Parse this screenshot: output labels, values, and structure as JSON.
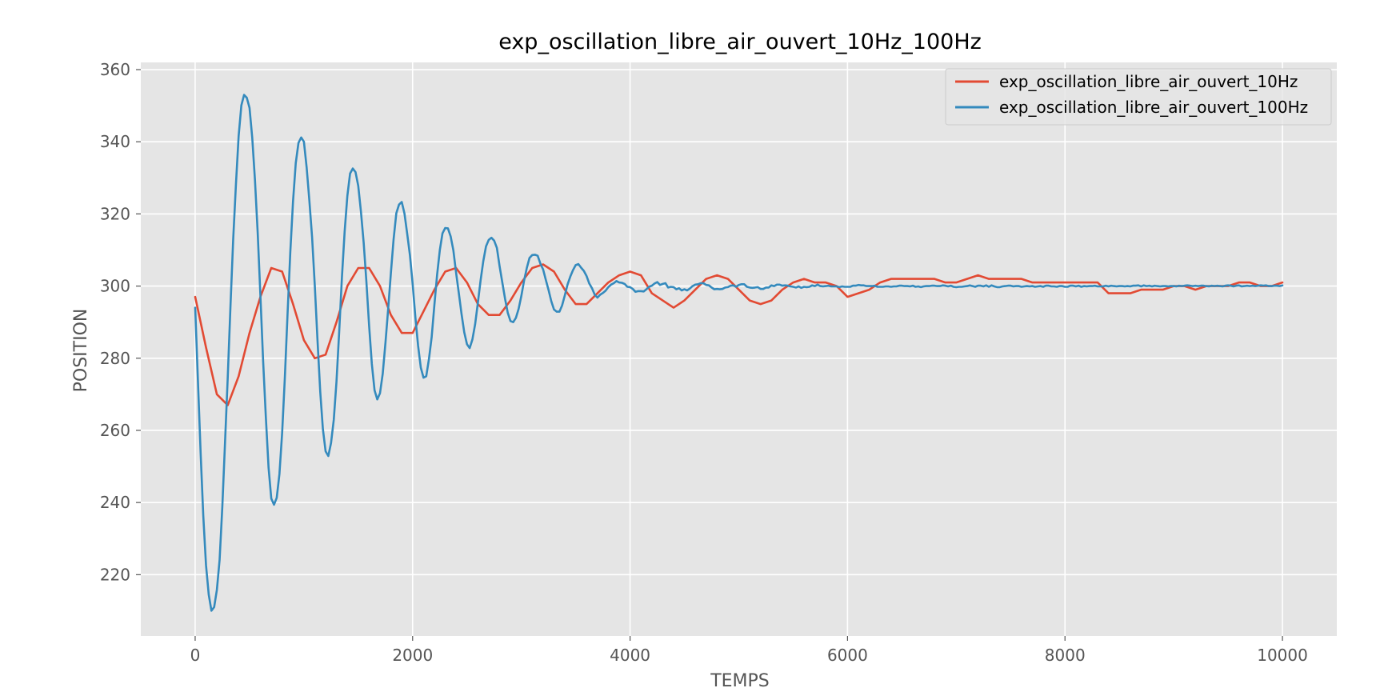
{
  "chart_data": {
    "type": "line",
    "title": "exp_oscillation_libre_air_ouvert_10Hz_100Hz",
    "xlabel": "TEMPS",
    "ylabel": "POSITION",
    "xlim": [
      -500,
      10500
    ],
    "ylim": [
      203,
      362
    ],
    "xticks": [
      0,
      2000,
      4000,
      6000,
      8000,
      10000
    ],
    "yticks": [
      220,
      240,
      260,
      280,
      300,
      320,
      340,
      360
    ],
    "grid": true,
    "legend_position": "top-right",
    "colors": {
      "background": "#e5e5e5",
      "grid": "#ffffff",
      "text": "#555555",
      "series_10Hz": "#e24a33",
      "series_100Hz": "#348abd"
    },
    "series": [
      {
        "name": "exp_oscillation_libre_air_ouvert_10Hz",
        "color": "#e24a33",
        "x": [
          0,
          100,
          200,
          300,
          400,
          500,
          600,
          700,
          800,
          900,
          1000,
          1100,
          1200,
          1300,
          1400,
          1500,
          1600,
          1700,
          1800,
          1900,
          2000,
          2100,
          2200,
          2300,
          2400,
          2500,
          2600,
          2700,
          2800,
          2900,
          3000,
          3100,
          3200,
          3300,
          3400,
          3500,
          3600,
          3700,
          3800,
          3900,
          4000,
          4100,
          4200,
          4300,
          4400,
          4500,
          4600,
          4700,
          4800,
          4900,
          5000,
          5100,
          5200,
          5300,
          5400,
          5500,
          5600,
          5700,
          5800,
          5900,
          6000,
          6100,
          6200,
          6300,
          6400,
          6500,
          6600,
          6700,
          6800,
          6900,
          7000,
          7100,
          7200,
          7300,
          7400,
          7500,
          7600,
          7700,
          7800,
          7900,
          8000,
          8100,
          8200,
          8300,
          8400,
          8500,
          8600,
          8700,
          8800,
          8900,
          9000,
          9100,
          9200,
          9300,
          9400,
          9500,
          9600,
          9700,
          9800,
          9900,
          10000
        ],
        "y": [
          297,
          283,
          270,
          267,
          275,
          287,
          297,
          305,
          304,
          295,
          285,
          280,
          281,
          290,
          300,
          305,
          305,
          300,
          292,
          287,
          287,
          293,
          299,
          304,
          305,
          301,
          295,
          292,
          292,
          296,
          301,
          305,
          306,
          304,
          299,
          295,
          295,
          298,
          301,
          303,
          304,
          303,
          298,
          296,
          294,
          296,
          299,
          302,
          303,
          302,
          299,
          296,
          295,
          296,
          299,
          301,
          302,
          301,
          301,
          300,
          297,
          298,
          299,
          301,
          302,
          302,
          302,
          302,
          302,
          301,
          301,
          302,
          303,
          302,
          302,
          302,
          302,
          301,
          301,
          301,
          301,
          301,
          301,
          301,
          298,
          298,
          298,
          299,
          299,
          299,
          300,
          300,
          299,
          300,
          300,
          300,
          301,
          301,
          300,
          300,
          301
        ]
      },
      {
        "name": "exp_oscillation_libre_air_ouvert_100Hz",
        "color": "#348abd",
        "x": [
          0,
          25,
          50,
          75,
          100,
          125,
          150,
          175,
          200,
          225,
          250,
          275,
          300,
          325,
          350,
          375,
          400,
          425,
          450,
          475,
          500,
          525,
          550,
          575,
          600,
          625,
          650,
          675,
          700,
          725,
          750,
          775,
          800,
          825,
          850,
          875,
          900,
          925,
          950,
          975,
          1000,
          1025,
          1050,
          1075,
          1100,
          1125,
          1150,
          1175,
          1200,
          1225,
          1250,
          1275,
          1300,
          1325,
          1350,
          1375,
          1400,
          1425,
          1450,
          1475,
          1500,
          1525,
          1550,
          1575,
          1600,
          1625,
          1650,
          1675,
          1700,
          1725,
          1750,
          1775,
          1800,
          1825,
          1850,
          1875,
          1900,
          1925,
          1950,
          1975,
          2000,
          2025,
          2050,
          2075,
          2100,
          2125,
          2150,
          2175,
          2200,
          2225,
          2250,
          2275,
          2300,
          2325,
          2350,
          2375,
          2400,
          2425,
          2450,
          2475,
          2500,
          2525,
          2550,
          2575,
          2600,
          2625,
          2650,
          2675,
          2700,
          2725,
          2750,
          2775,
          2800,
          2825,
          2850,
          2875,
          2900,
          2925,
          2950,
          2975,
          3000,
          3025,
          3050,
          3075,
          3100,
          3125,
          3150,
          3175,
          3200,
          3225,
          3250,
          3275,
          3300,
          3325,
          3350,
          3375,
          3400,
          3425,
          3450,
          3475,
          3500,
          3525,
          3550,
          3575,
          3600,
          3625,
          3650,
          3675,
          3700,
          3725,
          3750,
          3775,
          3800,
          3825,
          3850,
          3875,
          3900,
          3925,
          3950,
          3975,
          4000,
          4025,
          4050,
          4075,
          4100,
          4125,
          4150,
          4175,
          4200,
          4225,
          4250,
          4275,
          4300,
          4325,
          4350,
          4375,
          4400,
          4425,
          4450,
          4475,
          4500,
          4525,
          4550,
          4575,
          4600,
          4625,
          4650,
          4675,
          4700,
          4725,
          4750,
          4775,
          4800,
          4825,
          4850,
          4875,
          4900,
          4925,
          4950,
          4975,
          5000,
          5025,
          5050,
          5075,
          5100,
          5125,
          5150,
          5175,
          5200,
          5225,
          5250,
          5275,
          5300,
          5325,
          5350,
          5375,
          5400,
          5425,
          5450,
          5475,
          5500,
          5525,
          5550,
          5575,
          5600,
          5625,
          5650,
          5675,
          5700,
          5725,
          5750,
          5775,
          5800,
          5825,
          5850,
          5875,
          5900,
          5925,
          5950,
          5975,
          6000,
          6025,
          6050,
          6075,
          6100,
          6125,
          6150,
          6175,
          6200,
          6225,
          6250,
          6275,
          6300,
          6325,
          6350,
          6375,
          6400,
          6425,
          6450,
          6475,
          6500,
          6525,
          6550,
          6575,
          6600,
          6625,
          6650,
          6675,
          6700,
          6725,
          6750,
          6775,
          6800,
          6825,
          6850,
          6875,
          6900,
          6925,
          6950,
          6975,
          7000,
          7025,
          7050,
          7075,
          7100,
          7125,
          7150,
          7175,
          7200,
          7225,
          7250,
          7275,
          7300,
          7325,
          7350,
          7375,
          7400,
          7425,
          7450,
          7475,
          7500,
          7525,
          7550,
          7575,
          7600,
          7625,
          7650,
          7675,
          7700,
          7725,
          7750,
          7775,
          7800,
          7825,
          7850,
          7875,
          7900,
          7925,
          7950,
          7975,
          8000,
          8025,
          8050,
          8075,
          8100,
          8125,
          8150,
          8175,
          8200,
          8225,
          8250,
          8275,
          8300,
          8325,
          8350,
          8375,
          8400,
          8425,
          8450,
          8475,
          8500,
          8525,
          8550,
          8575,
          8600,
          8625,
          8650,
          8675,
          8700,
          8725,
          8750,
          8775,
          8800,
          8825,
          8850,
          8875,
          8900,
          8925,
          8950,
          8975,
          9000,
          9025,
          9050,
          9075,
          9100,
          9125,
          9150,
          9175,
          9200,
          9225,
          9250,
          9275,
          9300,
          9325,
          9350,
          9375,
          9400,
          9425,
          9450,
          9475,
          9500,
          9525,
          9550,
          9575,
          9600,
          9625,
          9650,
          9675,
          9700,
          9725,
          9750,
          9775,
          9800,
          9825,
          9850,
          9875,
          9900,
          9925,
          9950,
          9975,
          10000
        ],
        "y": [
          294.0,
          273.8,
          253.7,
          236.3,
          222.7,
          214.5,
          210.0,
          211.0,
          215.8,
          224.1,
          238.8,
          256.7,
          274.8,
          294.5,
          313.0,
          328.1,
          341.6,
          350.1,
          353.0,
          352.2,
          349.4,
          341.1,
          329.4,
          314.9,
          297.4,
          279.3,
          263.7,
          249.7,
          241.1,
          239.4,
          241.3,
          247.9,
          259.4,
          274.8,
          292.6,
          309.5,
          323.5,
          334.1,
          339.7,
          341.2,
          340.0,
          332.9,
          323.7,
          313.6,
          300.1,
          284.9,
          270.7,
          260.4,
          254.2,
          252.9,
          256.5,
          262.9,
          273.5,
          287.4,
          302.4,
          315.1,
          325.0,
          331.2,
          332.6,
          331.6,
          327.8,
          320.6,
          312.0,
          301.2,
          289.0,
          278.4,
          271.1,
          268.6,
          270.3,
          275.7,
          284.2,
          293.6,
          303.6,
          313.0,
          320.2,
          322.6,
          323.3,
          320.1,
          314.5,
          308.6,
          300.6,
          291.4,
          283.5,
          277.4,
          274.6,
          275.0,
          279.8,
          285.9,
          294.8,
          303.2,
          310.0,
          314.6,
          316.1,
          316.0,
          313.8,
          309.9,
          303.7,
          298.1,
          292.3,
          287.2,
          283.9,
          282.8,
          285.2,
          289.4,
          295.3,
          301.5,
          306.9,
          311.0,
          312.8,
          313.4,
          312.6,
          310.6,
          305.5,
          301.0,
          296.5,
          292.6,
          290.3,
          290.0,
          291.2,
          293.7,
          297.3,
          301.5,
          305.0,
          307.8,
          308.6,
          308.7,
          308.4,
          306.2,
          304.6,
          301.7,
          298.9,
          295.8,
          293.5,
          292.9,
          292.9,
          294.6,
          297.4,
          300.4,
          302.6,
          304.4,
          305.8,
          306.1,
          305.1,
          304.2,
          302.8,
          300.7,
          299.4,
          297.6,
          296.8,
          297.6,
          298.1,
          298.7,
          299.7,
          300.4,
          300.8,
          301.4,
          301.0,
          300.9,
          300.6,
          299.8,
          299.7,
          299.2,
          298.4,
          298.6,
          298.6,
          298.5,
          299.1,
          299.8,
          300.1,
          300.7,
          301.1,
          300.3,
          300.6,
          300.8,
          299.6,
          299.8,
          299.7,
          299.1,
          299.4,
          298.8,
          299.1,
          298.8,
          299.3,
          300.0,
          300.4,
          300.5,
          300.8,
          300.8,
          300.3,
          300.2,
          299.6,
          299.1,
          299.2,
          299.1,
          299.2,
          299.6,
          299.7,
          300.1,
          300.2,
          299.8,
          300.3,
          300.5,
          300.5,
          299.8,
          299.6,
          299.5,
          299.6,
          299.7,
          299.2,
          299.2,
          299.6,
          299.6,
          300.2,
          300.0,
          300.4,
          300.4,
          300.1,
          300.2,
          300.1,
          299.9,
          299.8,
          299.6,
          299.9,
          299.5,
          299.8,
          299.7,
          299.8,
          300.2,
          300.0,
          300.4,
          300.0,
          299.9,
          300.0,
          300.1,
          299.9,
          299.9,
          299.9,
          299.7,
          299.9,
          299.8,
          299.8,
          299.8,
          300.1,
          300.1,
          300.3,
          300.2,
          300.2,
          300.0,
          300.0,
          300.0,
          300.1,
          299.8,
          299.8,
          299.8,
          299.9,
          299.9,
          299.8,
          299.9,
          299.9,
          300.1,
          300.1,
          300.0,
          300.0,
          299.9,
          300.1,
          299.8,
          299.9,
          299.7,
          299.9,
          300.0,
          300.0,
          300.1,
          300.1,
          300.0,
          300.0,
          300.2,
          300.1,
          299.9,
          300.1,
          299.8,
          299.7,
          299.8,
          299.8,
          299.9,
          300.0,
          300.2,
          300.0,
          299.8,
          300.1,
          300.1,
          299.9,
          300.2,
          299.8,
          300.2,
          299.9,
          299.7,
          299.7,
          299.9,
          300.0,
          300.1,
          300.1,
          299.9,
          300.0,
          300.0,
          299.8,
          299.9,
          300.0,
          299.9,
          300.0,
          299.8,
          299.9,
          300.0,
          299.8,
          300.1,
          300.1,
          299.9,
          299.9,
          299.8,
          300.0,
          300.0,
          299.8,
          299.8,
          300.1,
          300.1,
          299.9,
          300.1,
          299.8,
          300.0,
          299.9,
          300.0,
          300.0,
          300.1,
          299.9,
          299.9,
          299.9,
          300.1,
          299.9,
          300.1,
          300.0,
          299.9,
          300.0,
          300.0,
          299.9,
          300.0,
          299.9,
          300.1,
          300.1,
          300.2,
          299.9,
          300.2,
          300.0,
          300.1,
          299.9,
          300.1,
          300.0,
          299.9,
          300.0,
          300.0,
          299.9,
          300.0,
          300.0,
          299.9,
          300.1,
          300.0,
          300.1,
          300.2,
          300.1,
          300.0,
          300.1,
          300.0,
          300.1,
          300.1,
          300.0,
          299.9,
          300.1,
          300.0,
          300.1,
          300.0,
          299.9,
          300.1,
          300.2,
          300.1,
          299.9,
          300.1,
          300.2,
          299.9,
          300.0,
          300.1,
          300.0,
          300.1,
          300.0,
          300.1,
          300.2,
          300.1,
          300.2,
          300.0,
          300.0,
          300.1,
          300.1,
          300.0,
          300.2
        ]
      }
    ]
  }
}
